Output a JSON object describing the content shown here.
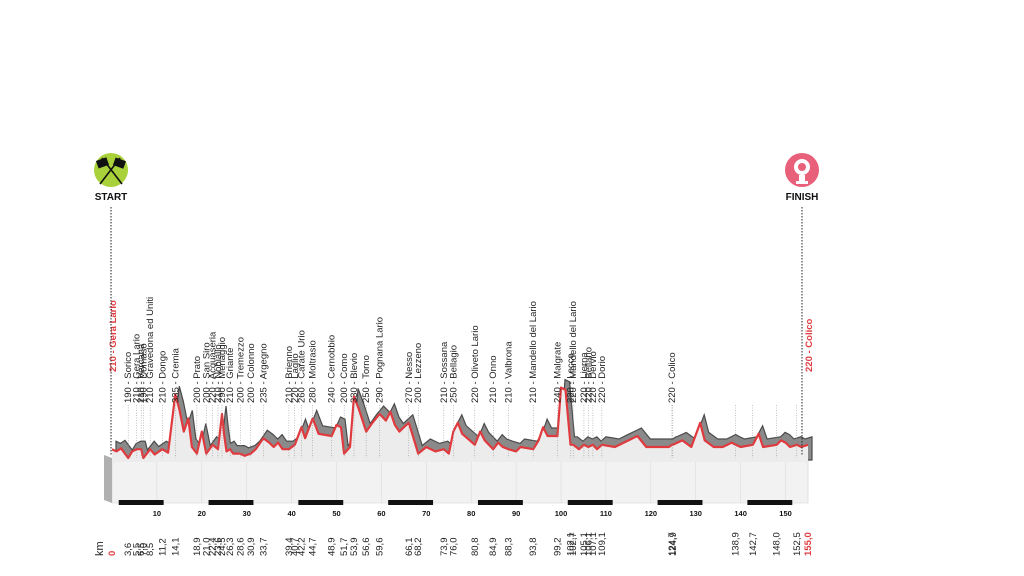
{
  "start_label": "START",
  "finish_label": "FINISH",
  "unit_label": "km",
  "colors": {
    "accent": "#e03a3e",
    "terrain": "#6e6e6e",
    "flag_green": "#a9d13a",
    "finish_pink": "#e8607a"
  },
  "icons": {
    "start": "checkered-flags-icon",
    "finish": "finish-medal-icon"
  },
  "chart_data": {
    "type": "area",
    "title": "",
    "x_unit": "km",
    "xlim": [
      0,
      155
    ],
    "scale_ticks": [
      10,
      20,
      30,
      40,
      50,
      60,
      70,
      80,
      90,
      100,
      110,
      120,
      130,
      140,
      150
    ],
    "waypoints": [
      {
        "km": "0",
        "text": "210 - Gera Lario",
        "highlight": true
      },
      {
        "km": "3,6",
        "text": "190 - Sorico"
      },
      {
        "km": "5,5",
        "text": "210 - Gera Lario"
      },
      {
        "km": "6,5",
        "text": "210 - Vercana"
      },
      {
        "km": "7,0",
        "text": "190 - Domaso"
      },
      {
        "km": "8,5",
        "text": "210 - Gravedona ed Uniti"
      },
      {
        "km": "11,2",
        "text": "210 - Dongo"
      },
      {
        "km": "14,1",
        "text": "335 - Cremia"
      },
      {
        "km": "18,9",
        "text": "200 - Prato"
      },
      {
        "km": "21,0",
        "text": "200 - San Siro"
      },
      {
        "km": "22,4",
        "text": "220 - Acquaseria"
      },
      {
        "km": "23,6",
        "text": "210 - Nobiallo"
      },
      {
        "km": "24,5",
        "text": "290 - Menaggio"
      },
      {
        "km": "26,3",
        "text": "210 - Griante"
      },
      {
        "km": "28,6",
        "text": "200 - Tremezzo"
      },
      {
        "km": "30,9",
        "text": "200 - Colonno"
      },
      {
        "km": "33,7",
        "text": "235 - Argegno"
      },
      {
        "km": "39,4",
        "text": "210 - Brienno"
      },
      {
        "km": "40,7",
        "text": "220 - Laglio"
      },
      {
        "km": "42,2",
        "text": "260 - Carate Urio"
      },
      {
        "km": "44,7",
        "text": "280 - Moltrasio"
      },
      {
        "km": "48,9",
        "text": "240 - Cernobbio"
      },
      {
        "km": "51,7",
        "text": "200 - Como"
      },
      {
        "km": "53,9",
        "text": "330 - Blevio"
      },
      {
        "km": "56,6",
        "text": "250 - Torno"
      },
      {
        "km": "59,6",
        "text": "290 - Pognana Lario"
      },
      {
        "km": "66,1",
        "text": "270 - Nesso"
      },
      {
        "km": "68,2",
        "text": "200 - Lezzeno"
      },
      {
        "km": "73,9",
        "text": "210 - Sossana"
      },
      {
        "km": "76,0",
        "text": "250 - Bellagio"
      },
      {
        "km": "80,8",
        "text": "220 - Oliveto Lario"
      },
      {
        "km": "84,9",
        "text": "210 - Onno"
      },
      {
        "km": "88,3",
        "text": "210 - Valbrona"
      },
      {
        "km": "93,8",
        "text": "210 - Mandello del Lario"
      },
      {
        "km": "99,2",
        "text": "240 - Malgrate"
      },
      {
        "km": "102,1",
        "text": "220 - Lecco"
      },
      {
        "km": "102,7",
        "text": "220 - Mandello del Lario"
      },
      {
        "km": "105,1",
        "text": "220 - Lierna"
      },
      {
        "km": "106,1",
        "text": "220 - Bellano"
      },
      {
        "km": "107,1",
        "text": "220 - Dervio"
      },
      {
        "km": "109,1",
        "text": "220 - Dorio"
      },
      {
        "km": "124,7",
        "text": "220 - Colico"
      },
      {
        "km": "124,9",
        "text": ""
      },
      {
        "km": "138,9",
        "text": ""
      },
      {
        "km": "142,7",
        "text": ""
      },
      {
        "km": "148,0",
        "text": ""
      },
      {
        "km": "152,5",
        "text": ""
      },
      {
        "km": "155,0",
        "text": "220 - Colico",
        "highlight": true
      }
    ],
    "profile": [
      [
        0,
        210
      ],
      [
        1,
        205
      ],
      [
        2,
        212
      ],
      [
        3.6,
        190
      ],
      [
        4.5,
        205
      ],
      [
        5.5,
        210
      ],
      [
        6.5,
        210
      ],
      [
        7,
        190
      ],
      [
        8.5,
        210
      ],
      [
        9.5,
        198
      ],
      [
        11.2,
        210
      ],
      [
        12.5,
        202
      ],
      [
        14.1,
        335
      ],
      [
        15,
        300
      ],
      [
        16,
        250
      ],
      [
        17,
        280
      ],
      [
        17.8,
        215
      ],
      [
        18.9,
        200
      ],
      [
        20,
        250
      ],
      [
        21,
        200
      ],
      [
        22.4,
        220
      ],
      [
        23,
        215
      ],
      [
        23.6,
        210
      ],
      [
        24.5,
        290
      ],
      [
        25,
        240
      ],
      [
        25.5,
        205
      ],
      [
        26.3,
        210
      ],
      [
        27,
        200
      ],
      [
        28.6,
        200
      ],
      [
        29.5,
        195
      ],
      [
        30.9,
        200
      ],
      [
        32,
        210
      ],
      [
        33.7,
        235
      ],
      [
        35,
        225
      ],
      [
        36,
        215
      ],
      [
        37,
        225
      ],
      [
        38,
        210
      ],
      [
        39.4,
        210
      ],
      [
        40.7,
        220
      ],
      [
        42.2,
        260
      ],
      [
        43,
        235
      ],
      [
        44.7,
        280
      ],
      [
        46,
        245
      ],
      [
        48.9,
        240
      ],
      [
        50,
        265
      ],
      [
        51,
        260
      ],
      [
        51.7,
        200
      ],
      [
        53,
        215
      ],
      [
        53.9,
        330
      ],
      [
        55,
        300
      ],
      [
        56.6,
        250
      ],
      [
        58,
        270
      ],
      [
        59.6,
        290
      ],
      [
        61,
        275
      ],
      [
        62,
        295
      ],
      [
        63,
        265
      ],
      [
        64,
        250
      ],
      [
        65,
        260
      ],
      [
        66.1,
        270
      ],
      [
        67,
        240
      ],
      [
        68.2,
        200
      ],
      [
        70,
        215
      ],
      [
        72,
        205
      ],
      [
        73.9,
        210
      ],
      [
        75,
        200
      ],
      [
        76,
        250
      ],
      [
        77,
        270
      ],
      [
        78,
        245
      ],
      [
        80.8,
        220
      ],
      [
        82,
        250
      ],
      [
        83,
        230
      ],
      [
        84.9,
        210
      ],
      [
        86,
        225
      ],
      [
        87,
        215
      ],
      [
        88.3,
        210
      ],
      [
        90,
        205
      ],
      [
        91,
        215
      ],
      [
        93.8,
        210
      ],
      [
        95,
        230
      ],
      [
        96,
        260
      ],
      [
        97,
        240
      ],
      [
        99.2,
        240
      ],
      [
        100,
        350
      ],
      [
        101,
        345
      ],
      [
        102.1,
        220
      ],
      [
        102.7,
        220
      ],
      [
        104,
        210
      ],
      [
        105.1,
        220
      ],
      [
        106.1,
        215
      ],
      [
        107.1,
        220
      ],
      [
        108,
        210
      ],
      [
        109.1,
        220
      ],
      [
        112,
        215
      ],
      [
        114,
        225
      ],
      [
        117,
        240
      ],
      [
        119,
        215
      ],
      [
        121,
        215
      ],
      [
        124,
        215
      ],
      [
        124.7,
        220
      ],
      [
        124.9,
        220
      ],
      [
        127,
        230
      ],
      [
        129,
        215
      ],
      [
        131,
        270
      ],
      [
        132,
        230
      ],
      [
        134,
        215
      ],
      [
        136,
        215
      ],
      [
        138,
        225
      ],
      [
        138.9,
        220
      ],
      [
        140,
        215
      ],
      [
        142.7,
        220
      ],
      [
        144,
        245
      ],
      [
        145,
        215
      ],
      [
        148,
        220
      ],
      [
        149,
        230
      ],
      [
        150,
        225
      ],
      [
        151,
        215
      ],
      [
        152.5,
        220
      ],
      [
        153.5,
        215
      ],
      [
        155,
        220
      ]
    ]
  }
}
